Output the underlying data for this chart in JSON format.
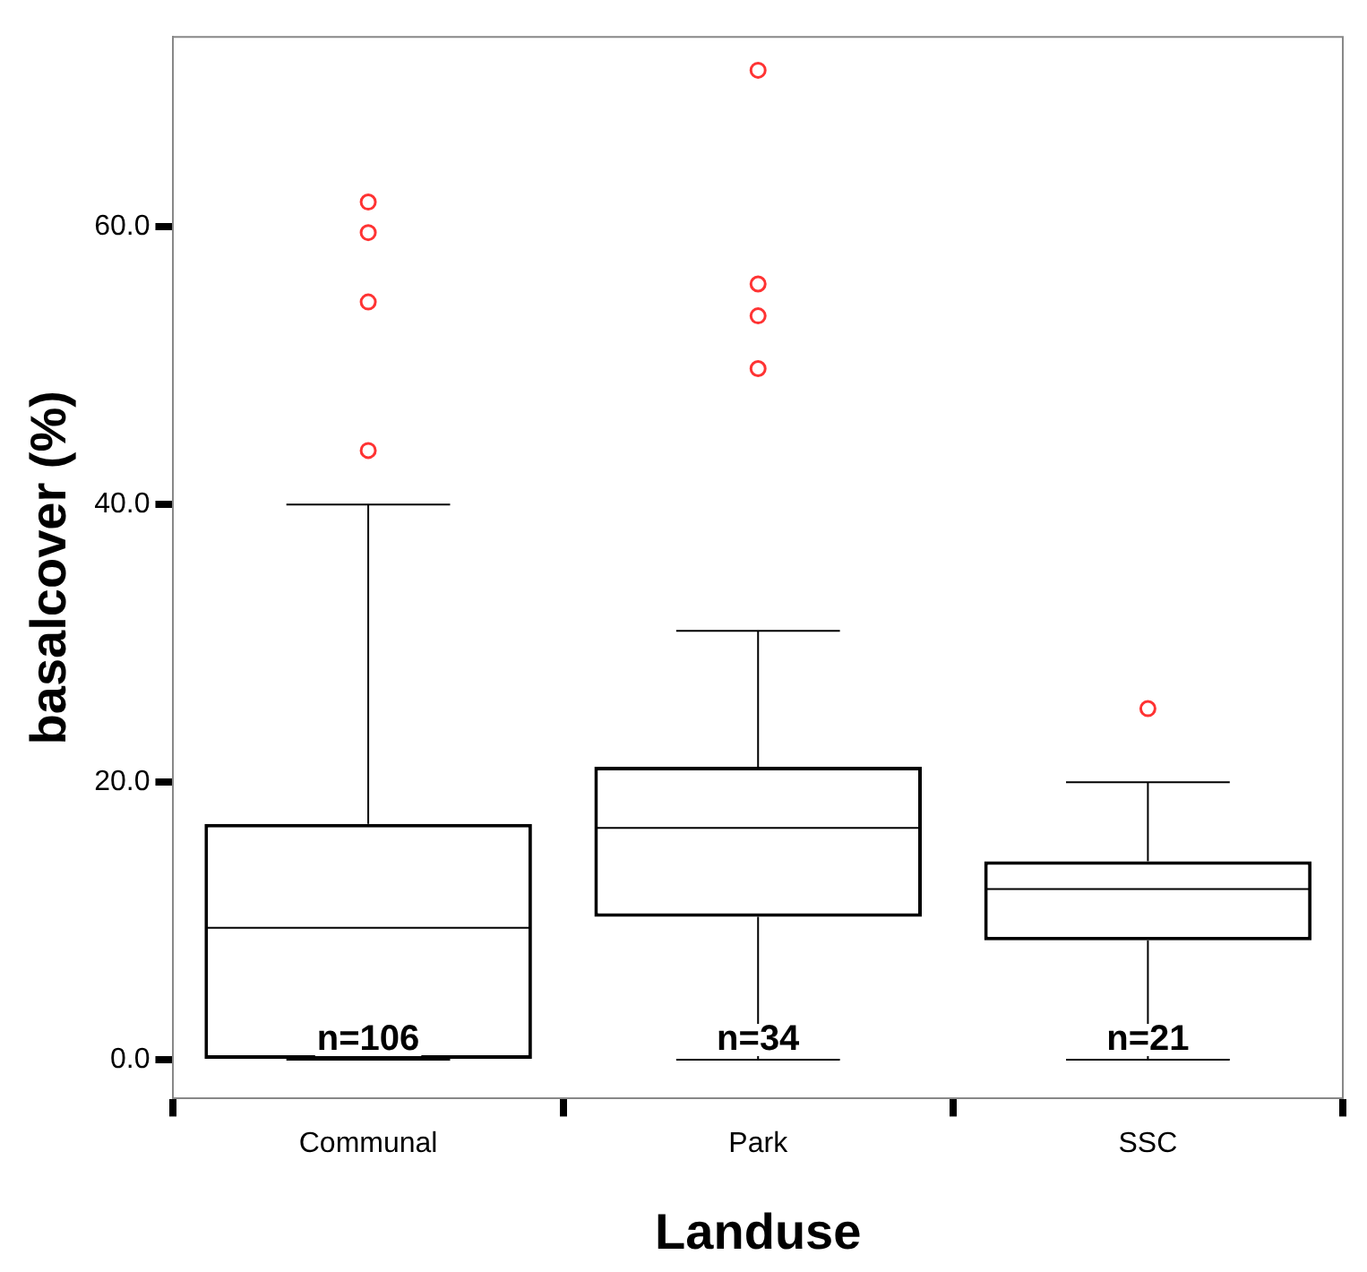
{
  "chart_data": {
    "type": "box",
    "xlabel": "Landuse",
    "ylabel": "basalcover (%)",
    "categories": [
      "Communal",
      "Park",
      "SSC"
    ],
    "boxes": [
      {
        "low": 0,
        "q1": 0,
        "median": 9.5,
        "q3": 17,
        "high": 40,
        "outliers": [
          43.9,
          54.6,
          59.6,
          61.8
        ]
      },
      {
        "low": 0,
        "q1": 10.3,
        "median": 16.7,
        "q3": 21.1,
        "high": 30.9,
        "outliers": [
          49.8,
          53.6,
          55.9,
          71.3
        ]
      },
      {
        "low": 0,
        "q1": 8.6,
        "median": 12.3,
        "q3": 14.3,
        "high": 20,
        "outliers": [
          25.3
        ]
      }
    ],
    "ylim": [
      -2.8,
      73.7
    ],
    "yticks": [
      {
        "value": 0,
        "label": "0.0"
      },
      {
        "value": 20,
        "label": "20.0"
      },
      {
        "value": 40,
        "label": "40.0"
      },
      {
        "value": 60,
        "label": "60.0"
      }
    ],
    "annotations": [
      {
        "text": "n=106",
        "x": "Communal",
        "y": 0
      },
      {
        "text": "n=34",
        "x": "Park",
        "y": 0
      },
      {
        "text": "n=21",
        "x": "SSC",
        "y": 0
      }
    ],
    "color": "#000000",
    "grid": false,
    "legend": false
  }
}
